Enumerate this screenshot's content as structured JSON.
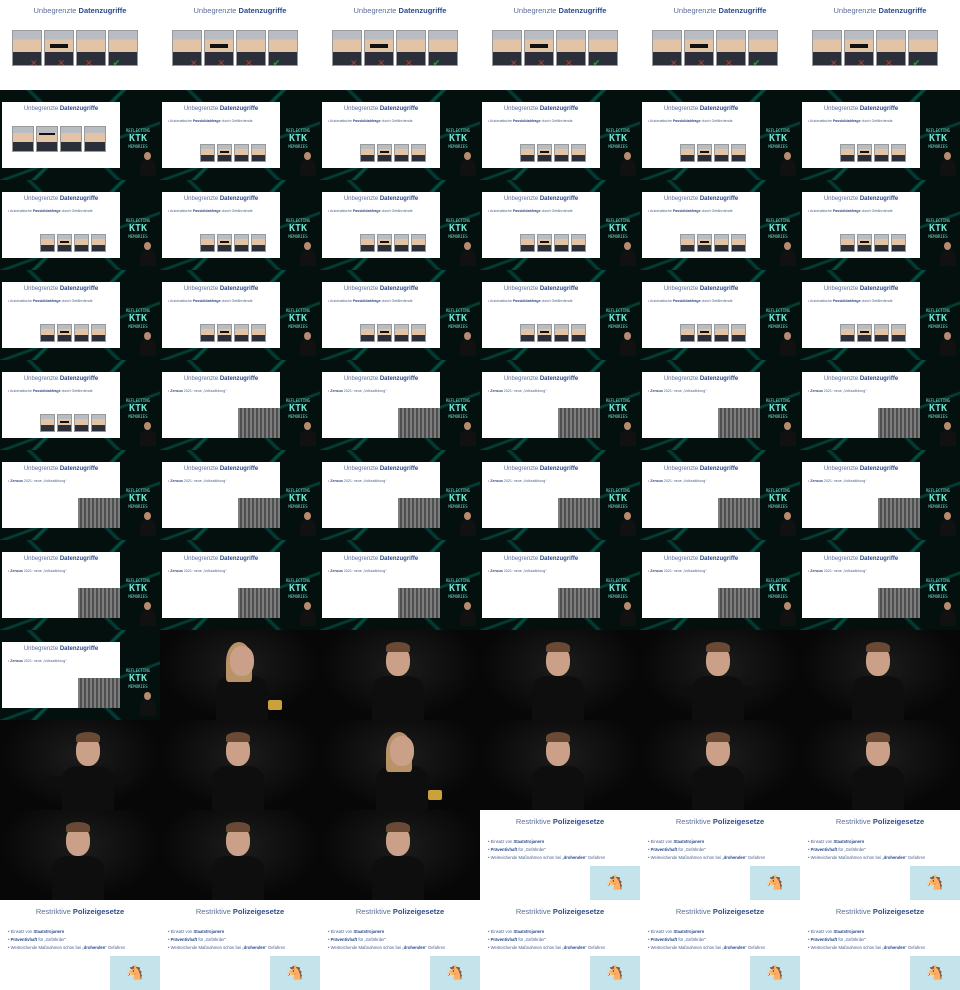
{
  "slides": {
    "face_title_prefix": "Unbegrenzte",
    "face_title_bold": "Datenzugriffe",
    "face_bullet_prefix": "Automatische ",
    "face_bullet_bold": "Passbildabfrage",
    "face_bullet_suffix": " durch Gefährdende",
    "zensus_bullet_prefix": "Zensus",
    "zensus_bullet_suffix": " 2021: neue „Volkszählung“",
    "police_title_prefix": "Restriktive",
    "police_title_bold": "Polizeigesetze",
    "police_bullets": [
      {
        "prefix": "Einsatz von ",
        "bold": "Staatstrojanern",
        "suffix": ""
      },
      {
        "prefix": "",
        "bold": "Präventivhaft",
        "suffix": " für „Gefährder“"
      },
      {
        "prefix": "Weitreichende Maßnahmen schon bei „",
        "bold": "drohenden",
        "suffix": "“ Gefahren"
      }
    ]
  },
  "logo": {
    "line1": "REFLECTING",
    "line2": "KTK",
    "line3": "MEMORIES"
  },
  "colors": {
    "title_accent": "#2e4a8a",
    "network_line": "#00c8aa",
    "reject_mark": "#c0392b",
    "accept_mark": "#2ea043"
  }
}
